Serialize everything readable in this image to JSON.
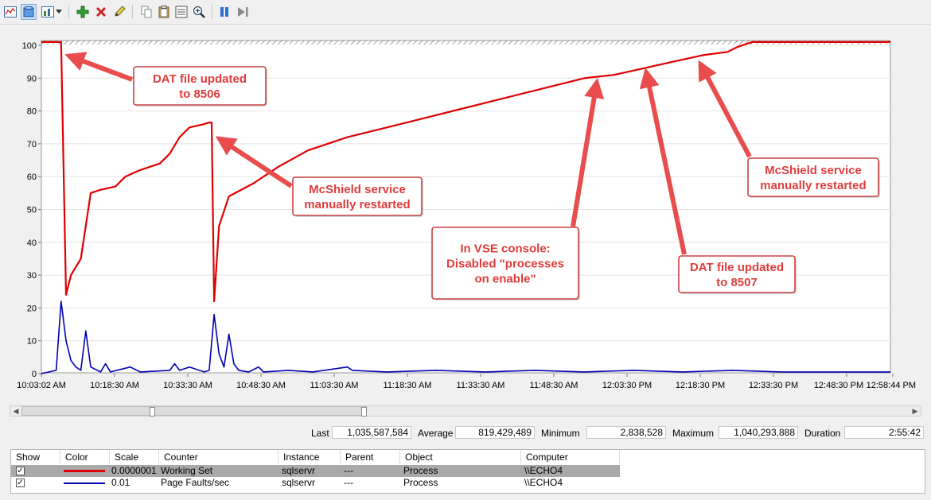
{
  "toolbar": {
    "buttons": [
      {
        "name": "view-graph-icon"
      },
      {
        "name": "view-histogram-icon"
      },
      {
        "name": "change-graph-type-icon"
      },
      {
        "name": "add-counter-icon"
      },
      {
        "name": "delete-counter-icon"
      },
      {
        "name": "highlight-icon"
      },
      {
        "name": "copy-properties-icon"
      },
      {
        "name": "paste-counter-list-icon"
      },
      {
        "name": "properties-icon"
      },
      {
        "name": "zoom-icon"
      },
      {
        "name": "freeze-display-icon"
      },
      {
        "name": "update-data-icon"
      }
    ]
  },
  "chart_data": {
    "type": "line",
    "title": "",
    "ylim": [
      0,
      100
    ],
    "yticks": [
      "0",
      "10",
      "20",
      "30",
      "40",
      "50",
      "60",
      "70",
      "80",
      "90",
      "100"
    ],
    "xticks": [
      "10:03:02 AM",
      "10:18:30 AM",
      "10:33:30 AM",
      "10:48:30 AM",
      "11:03:30 AM",
      "11:18:30 AM",
      "11:33:30 AM",
      "11:48:30 AM",
      "12:03:30 PM",
      "12:18:30 PM",
      "12:33:30 PM",
      "12:48:30 PM",
      "12:58:44 PM"
    ],
    "grid": true,
    "series": [
      {
        "name": "Working Set",
        "color": "#e00000",
        "points": [
          [
            0,
            101
          ],
          [
            4,
            101
          ],
          [
            5,
            24
          ],
          [
            6,
            30
          ],
          [
            8,
            35
          ],
          [
            9,
            45
          ],
          [
            10,
            55
          ],
          [
            12,
            56
          ],
          [
            15,
            57
          ],
          [
            17,
            60
          ],
          [
            20,
            62
          ],
          [
            24,
            64
          ],
          [
            26,
            67
          ],
          [
            28,
            72
          ],
          [
            30,
            75
          ],
          [
            33,
            76
          ],
          [
            34,
            76.5
          ],
          [
            34.5,
            76.5
          ],
          [
            35,
            22
          ],
          [
            36,
            45
          ],
          [
            38,
            54
          ],
          [
            43,
            58
          ],
          [
            48,
            63
          ],
          [
            54,
            68
          ],
          [
            62,
            72
          ],
          [
            70,
            75
          ],
          [
            78,
            78
          ],
          [
            86,
            81
          ],
          [
            94,
            84
          ],
          [
            102,
            87
          ],
          [
            110,
            90
          ],
          [
            116,
            91
          ],
          [
            122,
            93
          ],
          [
            128,
            95
          ],
          [
            134,
            97
          ],
          [
            139,
            98
          ],
          [
            141,
            99.5
          ],
          [
            144,
            101
          ],
          [
            172,
            101
          ]
        ]
      },
      {
        "name": "Page Faults/sec",
        "color": "#0000b4",
        "points": [
          [
            0,
            0
          ],
          [
            3,
            1
          ],
          [
            4,
            22
          ],
          [
            5,
            10
          ],
          [
            6,
            4
          ],
          [
            7,
            2
          ],
          [
            8,
            1
          ],
          [
            9,
            13
          ],
          [
            10,
            2
          ],
          [
            12,
            0.5
          ],
          [
            13,
            3
          ],
          [
            14,
            0.5
          ],
          [
            18,
            2
          ],
          [
            20,
            0.5
          ],
          [
            26,
            1
          ],
          [
            27,
            3
          ],
          [
            28,
            1
          ],
          [
            30,
            2
          ],
          [
            33,
            0.5
          ],
          [
            34,
            1
          ],
          [
            35,
            18
          ],
          [
            36,
            6
          ],
          [
            37,
            2
          ],
          [
            38,
            12
          ],
          [
            39,
            3
          ],
          [
            40,
            1
          ],
          [
            42,
            0.5
          ],
          [
            44,
            2
          ],
          [
            45,
            0.5
          ],
          [
            50,
            1
          ],
          [
            55,
            0.5
          ],
          [
            62,
            2
          ],
          [
            63,
            1
          ],
          [
            70,
            0.5
          ],
          [
            80,
            1
          ],
          [
            90,
            0.5
          ],
          [
            100,
            1
          ],
          [
            110,
            0.5
          ],
          [
            120,
            1
          ],
          [
            130,
            0.5
          ],
          [
            140,
            1
          ],
          [
            150,
            0.5
          ],
          [
            160,
            0.5
          ],
          [
            172,
            0.5
          ]
        ]
      }
    ],
    "annotations": [
      {
        "lines": [
          "DAT file updated",
          "to 8506"
        ]
      },
      {
        "lines": [
          "McShield service",
          "manually restarted"
        ]
      },
      {
        "lines": [
          "In VSE console:",
          "Disabled \"processes",
          "on enable\""
        ]
      },
      {
        "lines": [
          "DAT file updated",
          "to 8507"
        ]
      },
      {
        "lines": [
          "McShield service",
          "manually restarted"
        ]
      }
    ]
  },
  "stats": {
    "last_label": "Last",
    "last_value": "1,035,587,584",
    "average_label": "Average",
    "average_value": "819,429,489",
    "minimum_label": "Minimum",
    "minimum_value": "2,838,528",
    "maximum_label": "Maximum",
    "maximum_value": "1,040,293,888",
    "duration_label": "Duration",
    "duration_value": "2:55:42"
  },
  "legend": {
    "headers": [
      "Show",
      "Color",
      "Scale",
      "Counter",
      "Instance",
      "Parent",
      "Object",
      "Computer"
    ],
    "rows": [
      {
        "checked": "✓",
        "color": "#e00000",
        "scale": "0.0000001",
        "counter": "Working Set",
        "instance": "sqlservr",
        "parent": "---",
        "object": "Process",
        "computer": "\\\\ECHO4"
      },
      {
        "checked": "✓",
        "color": "#0000b4",
        "scale": "0.01",
        "counter": "Page Faults/sec",
        "instance": "sqlservr",
        "parent": "---",
        "object": "Process",
        "computer": "\\\\ECHO4"
      }
    ]
  }
}
